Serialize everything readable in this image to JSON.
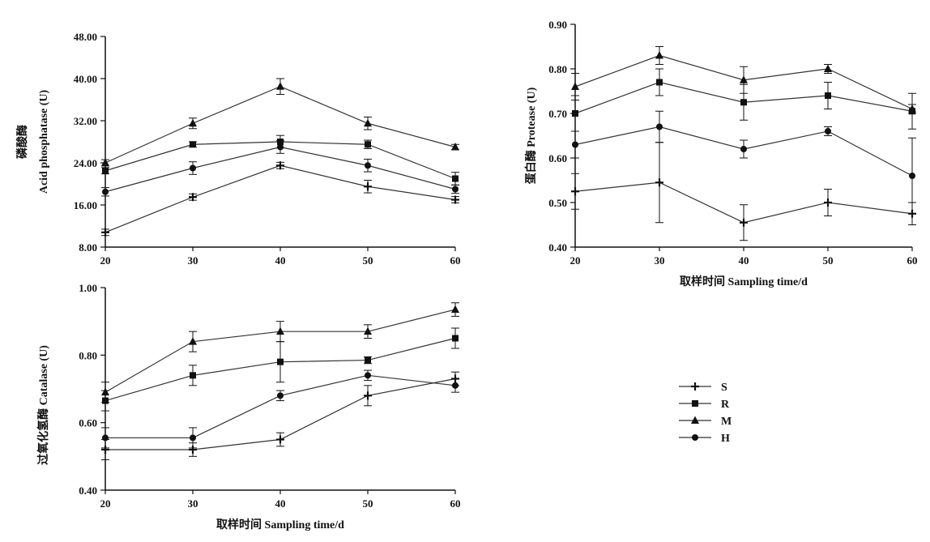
{
  "chart_data": [
    {
      "type": "line",
      "xlabel": "",
      "ylabel_cn": "磷酸酶",
      "ylabel_en": "Acid phosphatase (U)",
      "x": [
        20,
        30,
        40,
        50,
        60
      ],
      "x_ticks": [
        "20",
        "30",
        "40",
        "50",
        "60"
      ],
      "y_ticks": [
        "8.00",
        "16.00",
        "24.00",
        "32.00",
        "40.00",
        "48.00"
      ],
      "ylim": [
        8,
        48
      ],
      "error_bars": true,
      "series": [
        {
          "name": "S",
          "marker": "plus",
          "values": [
            10.8,
            17.5,
            23.5,
            19.5,
            17.0
          ],
          "errors": [
            0.6,
            0.6,
            0.6,
            1.2,
            0.6
          ]
        },
        {
          "name": "R",
          "marker": "square",
          "values": [
            22.5,
            27.5,
            28.0,
            27.5,
            21.0
          ],
          "errors": [
            0.6,
            0.5,
            1.2,
            0.8,
            1.2
          ]
        },
        {
          "name": "M",
          "marker": "triangle",
          "values": [
            24.0,
            31.5,
            38.5,
            31.5,
            27.0
          ],
          "errors": [
            0.6,
            1.0,
            1.5,
            1.2,
            0.5
          ]
        },
        {
          "name": "H",
          "marker": "dot",
          "values": [
            18.5,
            23.0,
            27.0,
            23.5,
            19.0
          ],
          "errors": [
            0.8,
            1.2,
            1.2,
            1.2,
            0.8
          ]
        }
      ]
    },
    {
      "type": "line",
      "xlabel": "取样时间 Sampling time/d",
      "ylabel_cn": "蛋白酶",
      "ylabel_en": "Protease (U)",
      "x": [
        20,
        30,
        40,
        50,
        60
      ],
      "x_ticks": [
        "20",
        "30",
        "40",
        "50",
        "60"
      ],
      "y_ticks": [
        "0.40",
        "0.50",
        "0.60",
        "0.70",
        "0.80",
        "0.90"
      ],
      "ylim": [
        0.4,
        0.9
      ],
      "error_bars": true,
      "series": [
        {
          "name": "S",
          "marker": "plus",
          "values": [
            0.525,
            0.545,
            0.455,
            0.5,
            0.475
          ],
          "errors": [
            0.04,
            0.09,
            0.04,
            0.03,
            0.025
          ]
        },
        {
          "name": "R",
          "marker": "square",
          "values": [
            0.7,
            0.77,
            0.725,
            0.74,
            0.705
          ],
          "errors": [
            0.04,
            0.03,
            0.04,
            0.03,
            0.04
          ]
        },
        {
          "name": "M",
          "marker": "triangle",
          "values": [
            0.76,
            0.83,
            0.775,
            0.8,
            0.71
          ],
          "errors": [
            0.03,
            0.02,
            0.03,
            0.01,
            0.01
          ]
        },
        {
          "name": "H",
          "marker": "dot",
          "values": [
            0.63,
            0.67,
            0.62,
            0.66,
            0.56
          ],
          "errors": [
            0.03,
            0.035,
            0.02,
            0.01,
            0.085
          ]
        }
      ]
    },
    {
      "type": "line",
      "xlabel": "取样时间 Sampling time/d",
      "ylabel_cn": "过氧化氢酶",
      "ylabel_en": "Catalase (U)",
      "x": [
        20,
        30,
        40,
        50,
        60
      ],
      "x_ticks": [
        "20",
        "30",
        "40",
        "50",
        "60"
      ],
      "y_ticks": [
        "0.40",
        "0.60",
        "0.80",
        "1.00"
      ],
      "ylim": [
        0.4,
        1.0
      ],
      "error_bars": true,
      "series": [
        {
          "name": "S",
          "marker": "plus",
          "values": [
            0.52,
            0.52,
            0.55,
            0.68,
            0.73
          ],
          "errors": [
            0.03,
            0.02,
            0.02,
            0.03,
            0.02
          ]
        },
        {
          "name": "R",
          "marker": "square",
          "values": [
            0.665,
            0.74,
            0.78,
            0.785,
            0.85
          ],
          "errors": [
            0.03,
            0.03,
            0.06,
            0.01,
            0.03
          ]
        },
        {
          "name": "M",
          "marker": "triangle",
          "values": [
            0.69,
            0.84,
            0.87,
            0.87,
            0.935
          ],
          "errors": [
            0.03,
            0.03,
            0.03,
            0.02,
            0.02
          ]
        },
        {
          "name": "H",
          "marker": "dot",
          "values": [
            0.555,
            0.555,
            0.68,
            0.74,
            0.71
          ],
          "errors": [
            0.03,
            0.03,
            0.015,
            0.015,
            0.02
          ]
        }
      ]
    }
  ],
  "legend": {
    "placement": "bottom-right",
    "entries": [
      "S",
      "R",
      "M",
      "H"
    ]
  }
}
